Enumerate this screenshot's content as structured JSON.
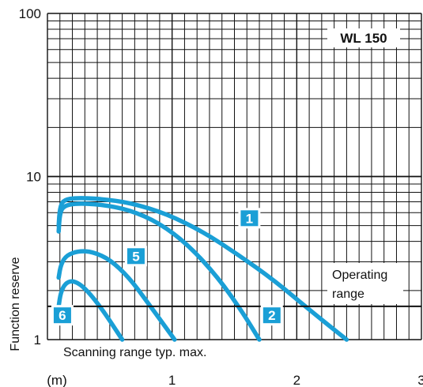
{
  "chart_data": {
    "type": "line",
    "title": "WL 150",
    "xlabel": "(m)",
    "ylabel": "Function reserve",
    "x_scale": "linear",
    "y_scale": "log",
    "xlim": [
      0,
      3
    ],
    "ylim": [
      1,
      100
    ],
    "x_ticks": [
      "1",
      "2",
      "3"
    ],
    "y_ticks": [
      "1",
      "10",
      "100"
    ],
    "grid": true,
    "line_color": "#1a9fd6",
    "badge_color": "#1a9fd6",
    "reference_line": {
      "value": 1.6,
      "label_line1": "Operating",
      "label_line2": "range"
    },
    "annotation": "Scanning range typ. max.",
    "series": [
      {
        "name": "1",
        "points": [
          [
            0.0,
            5.0
          ],
          [
            0.01,
            6.4
          ],
          [
            0.04,
            7.2
          ],
          [
            0.15,
            7.4
          ],
          [
            0.35,
            7.3
          ],
          [
            0.6,
            6.9
          ],
          [
            0.9,
            5.9
          ],
          [
            1.2,
            4.6
          ],
          [
            1.5,
            3.3
          ],
          [
            1.8,
            2.3
          ],
          [
            2.1,
            1.5
          ],
          [
            2.4,
            1.0
          ]
        ]
      },
      {
        "name": "2",
        "points": [
          [
            0.0,
            4.6
          ],
          [
            0.01,
            5.9
          ],
          [
            0.04,
            6.6
          ],
          [
            0.15,
            6.85
          ],
          [
            0.35,
            6.75
          ],
          [
            0.6,
            6.25
          ],
          [
            0.85,
            5.2
          ],
          [
            1.1,
            3.8
          ],
          [
            1.35,
            2.4
          ],
          [
            1.55,
            1.5
          ],
          [
            1.7,
            1.0
          ]
        ]
      },
      {
        "name": "5",
        "points": [
          [
            0.0,
            2.4
          ],
          [
            0.02,
            2.9
          ],
          [
            0.07,
            3.3
          ],
          [
            0.18,
            3.5
          ],
          [
            0.3,
            3.45
          ],
          [
            0.45,
            3.1
          ],
          [
            0.62,
            2.4
          ],
          [
            0.78,
            1.7
          ],
          [
            0.92,
            1.25
          ],
          [
            1.02,
            1.0
          ]
        ]
      },
      {
        "name": "6",
        "points": [
          [
            0.0,
            1.6
          ],
          [
            0.02,
            1.95
          ],
          [
            0.06,
            2.2
          ],
          [
            0.12,
            2.3
          ],
          [
            0.2,
            2.2
          ],
          [
            0.3,
            1.9
          ],
          [
            0.42,
            1.5
          ],
          [
            0.52,
            1.2
          ],
          [
            0.6,
            1.0
          ]
        ]
      }
    ],
    "badges": [
      {
        "label": "1",
        "x": 1.62,
        "y": 5.55
      },
      {
        "label": "5",
        "x": 0.71,
        "y": 3.25
      },
      {
        "label": "2",
        "x": 1.8,
        "y": 1.41
      },
      {
        "label": "6",
        "x": 0.12,
        "y": 1.41
      }
    ]
  }
}
